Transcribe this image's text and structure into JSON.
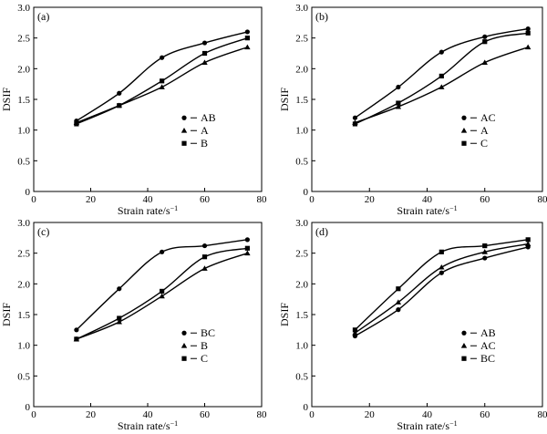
{
  "chart_data": [
    {
      "type": "line",
      "panel_label": "(a)",
      "xlabel": "Strain rate/s",
      "xlabel_sup": "−1",
      "ylabel": "DSIF",
      "xlim": [
        0,
        80
      ],
      "ylim": [
        0,
        3.0
      ],
      "xticks": [
        "0",
        "20",
        "40",
        "60",
        "80"
      ],
      "yticks": [
        "0",
        "0.5",
        "1.0",
        "1.5",
        "2.0",
        "2.5",
        "3.0"
      ],
      "legend_position": "lower-right",
      "x": [
        15,
        30,
        45,
        60,
        75
      ],
      "series": [
        {
          "name": "AB",
          "marker": "circle",
          "values": [
            1.15,
            1.6,
            2.18,
            2.42,
            2.6
          ]
        },
        {
          "name": "A",
          "marker": "triangle",
          "values": [
            1.12,
            1.4,
            1.7,
            2.1,
            2.35
          ]
        },
        {
          "name": "B",
          "marker": "square",
          "values": [
            1.1,
            1.4,
            1.8,
            2.25,
            2.5
          ]
        }
      ]
    },
    {
      "type": "line",
      "panel_label": "(b)",
      "xlabel": "Strain rate/s",
      "xlabel_sup": "−1",
      "ylabel": "DSIF",
      "xlim": [
        0,
        80
      ],
      "ylim": [
        0,
        3.0
      ],
      "xticks": [
        "0",
        "20",
        "40",
        "60",
        "80"
      ],
      "yticks": [
        "0",
        "0.5",
        "1.0",
        "1.5",
        "2.0",
        "2.5",
        "3.0"
      ],
      "legend_position": "lower-right",
      "x": [
        15,
        30,
        45,
        60,
        75
      ],
      "series": [
        {
          "name": "AC",
          "marker": "circle",
          "values": [
            1.2,
            1.7,
            2.27,
            2.52,
            2.65
          ]
        },
        {
          "name": "A",
          "marker": "triangle",
          "values": [
            1.12,
            1.38,
            1.7,
            2.1,
            2.35
          ]
        },
        {
          "name": "C",
          "marker": "square",
          "values": [
            1.1,
            1.44,
            1.88,
            2.44,
            2.58
          ]
        }
      ]
    },
    {
      "type": "line",
      "panel_label": "(c)",
      "xlabel": "Strain rate/s",
      "xlabel_sup": "−1",
      "ylabel": "DSIF",
      "xlim": [
        0,
        80
      ],
      "ylim": [
        0,
        3.0
      ],
      "xticks": [
        "0",
        "20",
        "40",
        "60",
        "80"
      ],
      "yticks": [
        "0",
        "0.5",
        "1.0",
        "1.5",
        "2.0",
        "2.5",
        "3.0"
      ],
      "legend_position": "lower-right",
      "x": [
        15,
        30,
        45,
        60,
        75
      ],
      "series": [
        {
          "name": "BC",
          "marker": "circle",
          "values": [
            1.25,
            1.92,
            2.52,
            2.62,
            2.72
          ]
        },
        {
          "name": "B",
          "marker": "triangle",
          "values": [
            1.1,
            1.38,
            1.8,
            2.25,
            2.5
          ]
        },
        {
          "name": "C",
          "marker": "square",
          "values": [
            1.1,
            1.44,
            1.88,
            2.44,
            2.58
          ]
        }
      ]
    },
    {
      "type": "line",
      "panel_label": "(d)",
      "xlabel": "Strain rate/s",
      "xlabel_sup": "−1",
      "ylabel": "DSIF",
      "xlim": [
        0,
        80
      ],
      "ylim": [
        0,
        3.0
      ],
      "xticks": [
        "0",
        "20",
        "40",
        "60",
        "80"
      ],
      "yticks": [
        "0",
        "0.5",
        "1.0",
        "1.5",
        "2.0",
        "2.5",
        "3.0"
      ],
      "legend_position": "lower-right",
      "x": [
        15,
        30,
        45,
        60,
        75
      ],
      "series": [
        {
          "name": "AB",
          "marker": "circle",
          "values": [
            1.15,
            1.58,
            2.18,
            2.42,
            2.6
          ]
        },
        {
          "name": "AC",
          "marker": "triangle",
          "values": [
            1.2,
            1.7,
            2.27,
            2.52,
            2.65
          ]
        },
        {
          "name": "BC",
          "marker": "square",
          "values": [
            1.25,
            1.92,
            2.52,
            2.62,
            2.72
          ]
        }
      ]
    }
  ]
}
